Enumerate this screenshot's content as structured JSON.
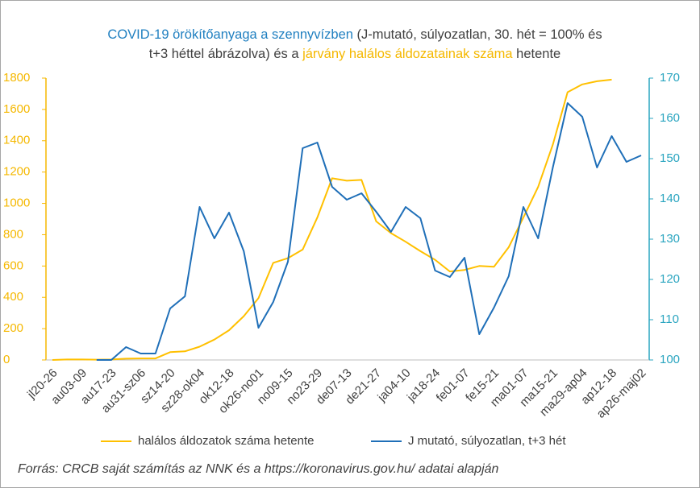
{
  "chart_data": {
    "type": "line",
    "title": [
      [
        {
          "text": "COVID-19 örökítőanyaga a szennyvízben",
          "color": "#1f7fc0"
        },
        {
          "text": " (J-mutató, súlyozatlan, 30. hét = 100% és",
          "color": "#404040"
        }
      ],
      [
        {
          "text": "t+3 héttel ábrázolva) és a ",
          "color": "#404040"
        },
        {
          "text": "járvány halálos áldozatainak száma",
          "color": "#f5b800"
        },
        {
          "text": " hetente",
          "color": "#404040"
        }
      ]
    ],
    "categories": [
      "jl20-26",
      null,
      "au03-09",
      null,
      "au17-23",
      null,
      "au31-sz06",
      null,
      "sz14-20",
      null,
      "sz28-ok04",
      null,
      "ok12-18",
      null,
      "ok26-no01",
      null,
      "no09-15",
      null,
      "no23-29",
      null,
      "de07-13",
      null,
      "de21-27",
      null,
      "ja04-10",
      null,
      "ja18-24",
      null,
      "fe01-07",
      null,
      "fe15-21",
      null,
      "ma01-07",
      null,
      "ma15-21",
      null,
      "ma29-ap04",
      null,
      "ap12-18",
      null,
      "ap26-maj02"
    ],
    "series": [
      {
        "name": "halálos áldozatok száma hetente",
        "color": "#ffc000",
        "values": [
          0,
          3,
          3,
          2,
          3,
          8,
          10,
          10,
          50,
          55,
          85,
          130,
          190,
          280,
          395,
          620,
          650,
          705,
          910,
          1160,
          1145,
          1150,
          885,
          810,
          755,
          695,
          640,
          565,
          575,
          600,
          595,
          720,
          910,
          1105,
          1375,
          1710,
          1760,
          1780,
          1790,
          null,
          null
        ]
      },
      {
        "name": "J mutató, súlyozatlan, t+3 hét",
        "color": "#1f6fb8",
        "axis": "y2",
        "values": [
          null,
          null,
          null,
          100,
          100,
          103.2,
          101.6,
          101.6,
          112.8,
          115.8,
          138,
          130.2,
          136.6,
          127,
          108,
          114.4,
          124.4,
          152.6,
          154,
          143,
          139.8,
          141.4,
          136.8,
          131.8,
          138,
          135.2,
          122.2,
          120.6,
          125.4,
          106.4,
          113,
          120.8,
          138,
          130.2,
          147.8,
          163.8,
          160.4,
          147.8,
          155.6,
          149.2,
          150.8
        ]
      }
    ],
    "ylim": [
      0,
      1800
    ],
    "yticks": [
      0,
      200,
      400,
      600,
      800,
      1000,
      1200,
      1400,
      1600,
      1800
    ],
    "ycolor": "#f5b800",
    "y2lim": [
      100,
      170
    ],
    "y2ticks": [
      100,
      110,
      120,
      130,
      140,
      150,
      160,
      170
    ],
    "y2color": "#2aa5c0",
    "source": "Forrás: CRCB saját számítás az NNK és a https://koronavirus.gov.hu/ adatai alapján"
  }
}
